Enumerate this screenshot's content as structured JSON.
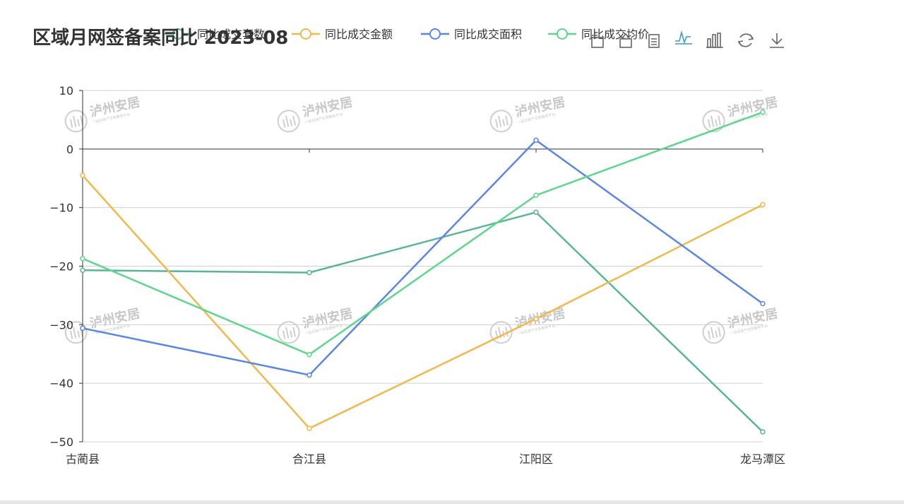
{
  "title": "区域月网签备案同比 2023-08",
  "toolbox": [
    "zoom-in-icon",
    "zoom-back-icon",
    "data-view-icon",
    "line-chart-icon",
    "bar-chart-icon",
    "restore-icon",
    "download-icon"
  ],
  "watermark": {
    "brand": "泸州安居",
    "sub": "一站式房产交易服务平台"
  },
  "chart_data": {
    "type": "line",
    "categories": [
      "古蔺县",
      "合江县",
      "江阳区",
      "龙马潭区"
    ],
    "ylim": [
      -50,
      10
    ],
    "yticks": [
      10,
      0,
      -10,
      -20,
      -30,
      -40,
      -50
    ],
    "ytick_labels": [
      "10",
      "0",
      "−10",
      "−20",
      "−30",
      "−40",
      "−50"
    ],
    "grid": true,
    "legend_position": "top",
    "series": [
      {
        "name": "同比成交套数",
        "color": "#5ab596",
        "values": [
          -20.7,
          -21.1,
          -10.8,
          -48.3
        ]
      },
      {
        "name": "同比成交金额",
        "color": "#f2b84b",
        "values": [
          -4.5,
          -47.7,
          -29.0,
          -9.5
        ]
      },
      {
        "name": "同比成交面积",
        "color": "#5b86e3",
        "values": [
          -30.6,
          -38.6,
          1.5,
          -26.4
        ]
      },
      {
        "name": "同比成交均价",
        "color": "#5fd68e",
        "values": [
          -18.7,
          -35.1,
          -7.9,
          6.3
        ]
      }
    ]
  }
}
